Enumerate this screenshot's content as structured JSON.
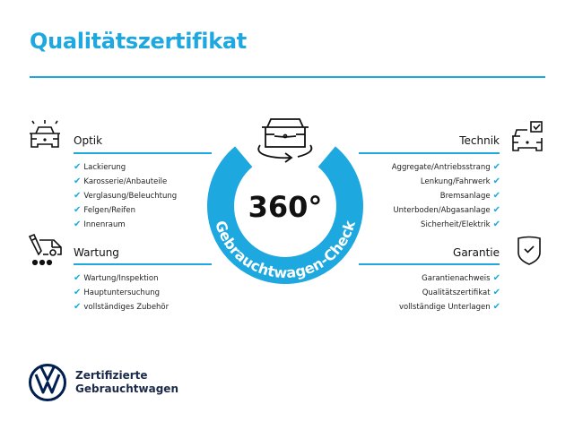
{
  "title": "Qualitätszertifikat",
  "badge": {
    "value": "360°",
    "ring_text": "Gebrauchtwagen-Check",
    "color": "#1ea8e0"
  },
  "sections": {
    "optik": {
      "heading": "Optik",
      "icon": "car-headlights-icon",
      "items": [
        "Lackierung",
        "Karosserie/Anbauteile",
        "Verglasung/Beleuchtung",
        "Felgen/Reifen",
        "Innenraum"
      ]
    },
    "wartung": {
      "heading": "Wartung",
      "icon": "service-van-icon",
      "items": [
        "Wartung/Inspektion",
        "Hauptuntersuchung",
        "vollständiges Zubehör"
      ]
    },
    "technik": {
      "heading": "Technik",
      "icon": "car-checkbox-icon",
      "items": [
        "Aggregate/Antriebsstrang",
        "Lenkung/Fahrwerk",
        "Bremsanlage",
        "Unterboden/Abgasanlage",
        "Sicherheit/Elektrik"
      ]
    },
    "garantie": {
      "heading": "Garantie",
      "icon": "shield-check-icon",
      "items": [
        "Garantienachweis",
        "Qualitätszertifikat",
        "vollständige Unterlagen"
      ]
    }
  },
  "check_mark": "✔",
  "brand": {
    "line1": "Zertifizierte",
    "line2": "Gebrauchtwagen",
    "logo": "vw-logo",
    "color": "#001e50"
  }
}
